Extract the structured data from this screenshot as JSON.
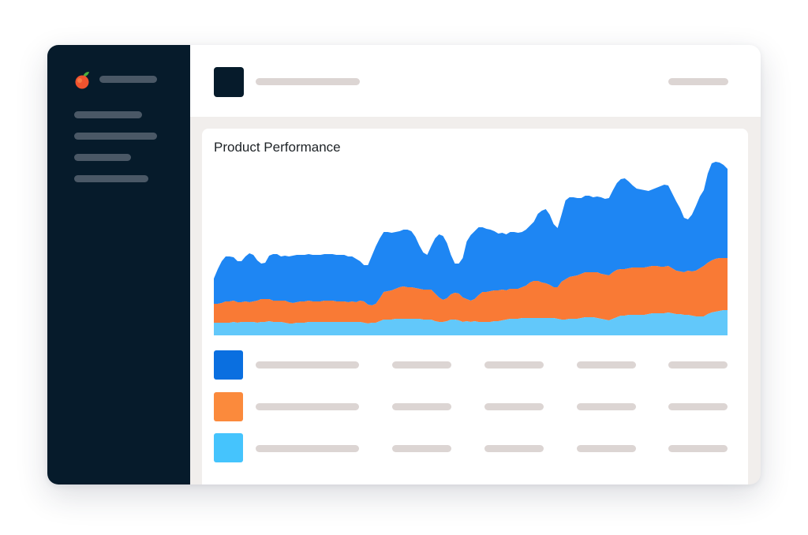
{
  "main": {
    "card_title": "Product Performance"
  },
  "colors": {
    "sidebar_bg": "#061b2b",
    "placeholder_bar": "#dcd5d3",
    "sidebar_bar": "#4a5866",
    "series_blue": "#1e86f3",
    "series_orange": "#f97a35",
    "series_light_blue": "#62c8fa"
  },
  "legend": {
    "rows": [
      {
        "swatch_color": "#0a6fe0"
      },
      {
        "swatch_color": "#fb8a3c"
      },
      {
        "swatch_color": "#45c4fd"
      }
    ]
  },
  "icons": {
    "logo": "peach-logo-icon"
  },
  "chart_data": {
    "type": "area",
    "stacked": true,
    "grid": false,
    "legend": "none",
    "x": [
      0,
      1,
      2,
      3,
      4,
      5,
      6,
      7,
      8,
      9,
      10,
      11,
      12,
      13,
      14,
      15,
      16,
      17,
      18,
      19,
      20,
      21,
      22,
      23,
      24,
      25,
      26,
      27,
      28,
      29,
      30,
      31,
      32,
      33,
      34,
      35,
      36,
      37,
      38,
      39,
      40,
      41,
      42,
      43,
      44,
      45,
      46,
      47,
      48,
      49,
      50,
      51,
      52,
      53,
      54,
      55,
      56,
      57,
      58,
      59,
      60,
      61,
      62,
      63,
      64,
      65,
      66,
      67,
      68,
      69,
      70,
      71,
      72,
      73,
      74,
      75,
      76,
      77,
      78,
      79,
      80,
      81,
      82,
      83,
      84,
      85,
      86,
      87,
      88,
      89,
      90,
      91,
      92,
      93,
      94,
      95,
      96,
      97,
      98,
      99,
      100,
      101,
      102,
      103,
      104,
      105,
      106,
      107,
      108,
      109,
      110,
      111,
      112,
      113,
      114,
      115,
      116,
      117,
      118,
      119,
      120,
      121,
      122,
      123,
      124,
      125,
      126,
      127,
      128,
      129,
      130
    ],
    "ylim": [
      0,
      232
    ],
    "series": [
      {
        "color": "#62c8fa",
        "values": [
          16,
          16,
          16,
          16,
          16,
          17,
          16,
          17,
          17,
          17,
          17,
          16,
          17,
          17,
          18,
          17,
          17,
          17,
          16,
          15,
          15,
          16,
          16,
          16,
          17,
          17,
          17,
          17,
          17,
          17,
          17,
          17,
          17,
          17,
          17,
          17,
          17,
          17,
          16,
          15,
          16,
          16,
          18,
          20,
          20,
          20,
          21,
          21,
          21,
          21,
          21,
          21,
          21,
          20,
          20,
          20,
          18,
          17,
          17,
          18,
          20,
          20,
          19,
          17,
          18,
          17,
          18,
          17,
          17,
          17,
          17,
          18,
          18,
          19,
          20,
          21,
          21,
          21,
          22,
          22,
          22,
          22,
          22,
          22,
          22,
          22,
          22,
          21,
          20,
          20,
          21,
          21,
          21,
          22,
          23,
          23,
          23,
          22,
          21,
          20,
          19,
          21,
          23,
          25,
          25,
          26,
          26,
          26,
          26,
          26,
          27,
          28,
          28,
          28,
          28,
          29,
          28,
          27,
          27,
          26,
          26,
          25,
          24,
          24,
          24,
          27,
          29,
          30,
          31,
          32,
          32
        ]
      },
      {
        "color": "#f97a35",
        "values": [
          24,
          24,
          25,
          27,
          27,
          27,
          26,
          25,
          26,
          25,
          26,
          28,
          29,
          29,
          28,
          27,
          27,
          27,
          28,
          27,
          26,
          26,
          27,
          27,
          27,
          26,
          26,
          26,
          27,
          27,
          27,
          26,
          26,
          26,
          25,
          26,
          25,
          27,
          27,
          24,
          22,
          24,
          29,
          35,
          36,
          37,
          38,
          40,
          41,
          40,
          40,
          39,
          38,
          38,
          38,
          38,
          35,
          31,
          28,
          29,
          32,
          34,
          34,
          31,
          28,
          27,
          28,
          34,
          38,
          38,
          39,
          39,
          39,
          39,
          37,
          38,
          38,
          38,
          39,
          41,
          45,
          47,
          47,
          45,
          44,
          42,
          39,
          40,
          48,
          51,
          53,
          54,
          55,
          56,
          57,
          57,
          57,
          58,
          57,
          57,
          57,
          59,
          60,
          59,
          59,
          59,
          60,
          60,
          60,
          60,
          60,
          60,
          60,
          59,
          59,
          59,
          57,
          55,
          54,
          54,
          56,
          56,
          58,
          61,
          64,
          65,
          66,
          67,
          67,
          66,
          66
        ]
      },
      {
        "color": "#1e86f3",
        "values": [
          32,
          44,
          53,
          57,
          57,
          55,
          52,
          52,
          57,
          62,
          59,
          51,
          45,
          46,
          55,
          59,
          59,
          56,
          57,
          58,
          60,
          60,
          59,
          59,
          59,
          59,
          59,
          59,
          59,
          59,
          59,
          59,
          59,
          59,
          58,
          57,
          55,
          50,
          46,
          50,
          63,
          73,
          76,
          76,
          75,
          73,
          72,
          71,
          72,
          73,
          71,
          65,
          55,
          47,
          44,
          55,
          70,
          80,
          81,
          70,
          50,
          37,
          38,
          50,
          73,
          83,
          86,
          86,
          82,
          80,
          78,
          75,
          72,
          72,
          71,
          72,
          72,
          71,
          70,
          71,
          72,
          75,
          85,
          91,
          94,
          89,
          80,
          75,
          85,
          100,
          101,
          100,
          98,
          96,
          97,
          97,
          95,
          96,
          97,
          96,
          98,
          104,
          110,
          114,
          115,
          110,
          104,
          100,
          99,
          98,
          96,
          97,
          99,
          102,
          104,
          102,
          95,
          88,
          80,
          69,
          65,
          72,
          82,
          91,
          96,
          113,
          123,
          123,
          121,
          118,
          113
        ]
      }
    ]
  }
}
